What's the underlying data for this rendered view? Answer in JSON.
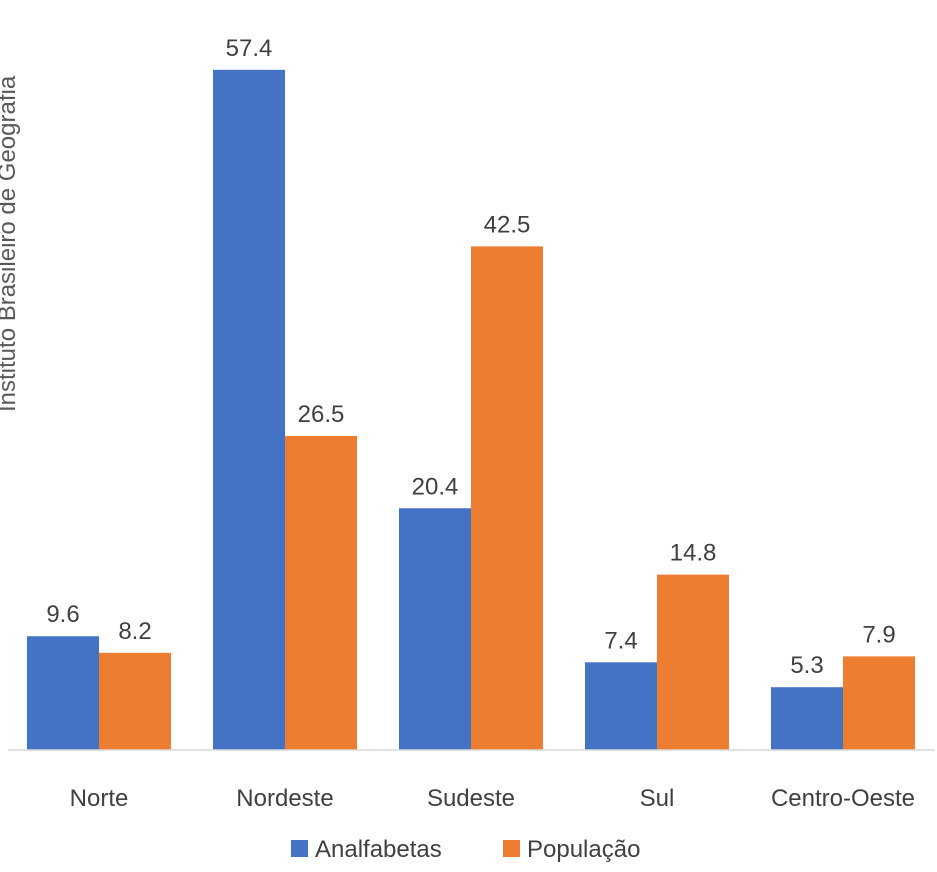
{
  "chart_data": {
    "type": "bar",
    "ylabel": "Instituto Brasileiro de Geografia",
    "categories": [
      "Norte",
      "Nordeste",
      "Sudeste",
      "Sul",
      "Centro-Oeste"
    ],
    "series": [
      {
        "name": "Analfabetas",
        "color": "#4472C4",
        "values": [
          9.6,
          57.4,
          20.4,
          7.4,
          5.3
        ]
      },
      {
        "name": "População",
        "color": "#ED7D31",
        "values": [
          8.2,
          26.5,
          42.5,
          14.8,
          7.9
        ]
      }
    ],
    "ylim": [
      0,
      60
    ],
    "grid": false,
    "legend": "bottom"
  }
}
